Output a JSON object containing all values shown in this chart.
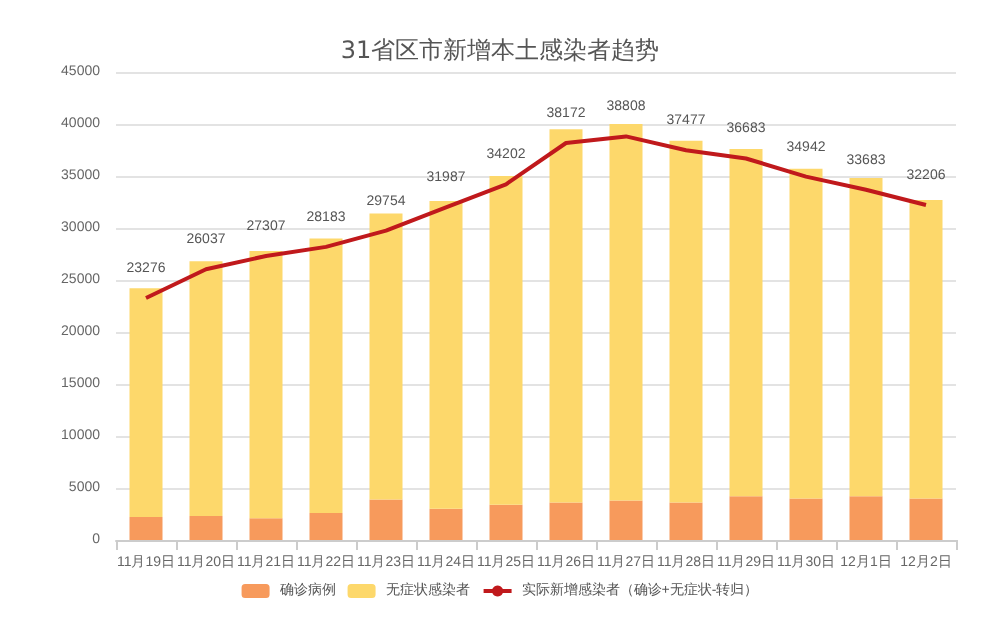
{
  "chart_data": {
    "type": "bar",
    "title": "31省区市新增本土感染者趋势",
    "stacked": true,
    "legend": "bottom",
    "grid": "y",
    "marker": "none",
    "ylim": [
      0,
      45000
    ],
    "yticks": [
      0,
      5000,
      10000,
      15000,
      20000,
      25000,
      30000,
      35000,
      40000,
      45000
    ],
    "categories": [
      "11月19日",
      "11月20日",
      "11月21日",
      "11月22日",
      "11月23日",
      "11月24日",
      "11月25日",
      "11月26日",
      "11月27日",
      "11月28日",
      "11月29日",
      "11月30日",
      "12月1日",
      "12月2日"
    ],
    "series": [
      {
        "name": "确诊病例",
        "color": "#f79a5c",
        "values": [
          2200,
          2300,
          2100,
          2600,
          3900,
          3000,
          3400,
          3600,
          3800,
          3600,
          4200,
          4000,
          4200,
          4000
        ]
      },
      {
        "name": "无症状感染者",
        "color": "#fdd86b",
        "values": [
          22000,
          24500,
          25700,
          26400,
          27500,
          29600,
          31600,
          35900,
          36200,
          34800,
          33400,
          31700,
          30600,
          28700
        ]
      },
      {
        "name": "实际新增感染者（确诊+无症状-转归）",
        "type": "line",
        "color": "#c0191c",
        "values": [
          23276,
          26037,
          27307,
          28183,
          29754,
          31987,
          34202,
          38172,
          38808,
          37477,
          36683,
          34942,
          33683,
          32206
        ],
        "value_labels": [
          "23276",
          "26037",
          "27307",
          "28183",
          "29754",
          "31987",
          "34202",
          "38172",
          "38808",
          "37477",
          "36683",
          "34942",
          "33683",
          "32206"
        ]
      }
    ]
  }
}
